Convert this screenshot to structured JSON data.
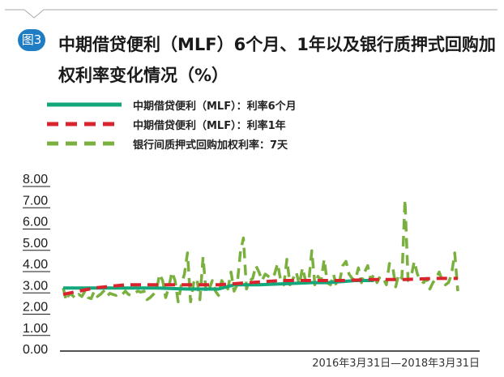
{
  "header": {
    "badge": "图3",
    "title": "中期借贷便利（MLF）6个月、1年以及银行质押式回购加权利率变化情况（%）"
  },
  "colors": {
    "mlf_6m": "#13a77c",
    "mlf_1y": "#d9232d",
    "repo_7d": "#7ab03e",
    "badge": "#1f7dc4"
  },
  "chart_data": {
    "type": "line",
    "title": "中期借贷便利（MLF）6个月、1年以及银行质押式回购加权利率变化情况（%）",
    "xlabel": "2016年3月31日—2018年3月31日",
    "ylabel": "",
    "ylim": [
      0,
      8
    ],
    "yticks": [
      "0.00",
      "1.00",
      "2.00",
      "3.00",
      "4.00",
      "5.00",
      "6.00",
      "7.00",
      "8.00"
    ],
    "grid": false,
    "legend_position": "top-left",
    "series": [
      {
        "name": "中期借贷便利（MLF）：利率6个月",
        "style": "solid",
        "color": "#13a77c",
        "x": [
          0,
          10,
          20,
          30,
          40,
          50,
          55,
          60,
          63,
          80,
          85,
          90,
          94,
          100
        ],
        "values": [
          2.85,
          2.85,
          2.85,
          2.85,
          2.8,
          2.8,
          3.0,
          3.0,
          3.0,
          3.1,
          3.1,
          3.15,
          3.2,
          3.2
        ]
      },
      {
        "name": "中期借贷便利（MLF）：利率1年",
        "style": "dashed",
        "color": "#d9232d",
        "x": [
          0,
          10,
          20,
          30,
          40,
          50,
          60,
          70,
          80,
          90,
          100,
          110,
          120,
          127
        ],
        "values": [
          2.55,
          2.85,
          3.0,
          3.0,
          3.0,
          3.0,
          3.1,
          3.2,
          3.2,
          3.2,
          3.25,
          3.25,
          3.3,
          3.3
        ]
      },
      {
        "name": "银行间质押式回购加权利率：7天",
        "style": "dashed",
        "color": "#7ab03e",
        "x": [
          0,
          1,
          2,
          3,
          4,
          5,
          6,
          7,
          8,
          9,
          10,
          11,
          12,
          13,
          14,
          15,
          16,
          17,
          18,
          19,
          20,
          21,
          22,
          23,
          24,
          25,
          26,
          27,
          28,
          29,
          30,
          31,
          32,
          33,
          34,
          35,
          36,
          37,
          38,
          39,
          40,
          41,
          42,
          43,
          44,
          45,
          46,
          47,
          48,
          49,
          50,
          51,
          52,
          53,
          54,
          55,
          56,
          57,
          58,
          59,
          60,
          61,
          62,
          63,
          64,
          65,
          66,
          67,
          68,
          69,
          70,
          71,
          72,
          73,
          74,
          75,
          76,
          77,
          78,
          79,
          80,
          81,
          82,
          83,
          84,
          85,
          86,
          87,
          88,
          89,
          90,
          91,
          92,
          93,
          94,
          95,
          96,
          97,
          98,
          99,
          100,
          101,
          102,
          103,
          104,
          105,
          106,
          107,
          108,
          109,
          110,
          111,
          112,
          113,
          114,
          115,
          116,
          117,
          118,
          119,
          120,
          121,
          122,
          123,
          124,
          125,
          126,
          127
        ],
        "values": [
          2.85,
          2.25,
          2.6,
          2.5,
          2.35,
          2.55,
          2.45,
          2.7,
          2.4,
          2.35,
          2.7,
          2.45,
          2.55,
          2.7,
          2.45,
          2.6,
          2.55,
          2.5,
          2.6,
          2.55,
          2.7,
          2.55,
          2.5,
          2.6,
          2.7,
          2.65,
          2.7,
          2.3,
          2.4,
          2.55,
          2.7,
          3.5,
          3.2,
          2.4,
          2.9,
          3.6,
          3.2,
          2.2,
          3.0,
          3.5,
          4.5,
          2.2,
          3.1,
          3.3,
          2.3,
          4.3,
          2.6,
          2.8,
          3.2,
          2.7,
          2.5,
          3.2,
          3.0,
          2.8,
          3.6,
          2.7,
          3.0,
          4.5,
          5.2,
          2.8,
          3.2,
          3.3,
          3.9,
          3.6,
          3.2,
          3.5,
          3.4,
          3.3,
          3.5,
          4.0,
          3.2,
          3.0,
          4.2,
          3.0,
          3.3,
          3.6,
          3.0,
          3.8,
          3.2,
          3.1,
          4.6,
          3.0,
          3.4,
          3.2,
          4.2,
          3.1,
          3.0,
          3.5,
          2.9,
          3.2,
          3.9,
          4.1,
          3.5,
          3.3,
          3.2,
          3.8,
          3.1,
          3.6,
          3.9,
          3.2,
          3.5,
          3.1,
          3.4,
          3.3,
          3.0,
          4.0,
          3.9,
          2.9,
          3.5,
          3.3,
          7.0,
          3.2,
          3.4,
          4.1,
          3.5,
          3.2,
          3.1,
          3.3,
          2.8,
          3.1,
          3.3,
          3.6,
          3.2,
          3.0,
          3.1,
          3.5,
          4.5,
          2.7
        ]
      }
    ]
  }
}
